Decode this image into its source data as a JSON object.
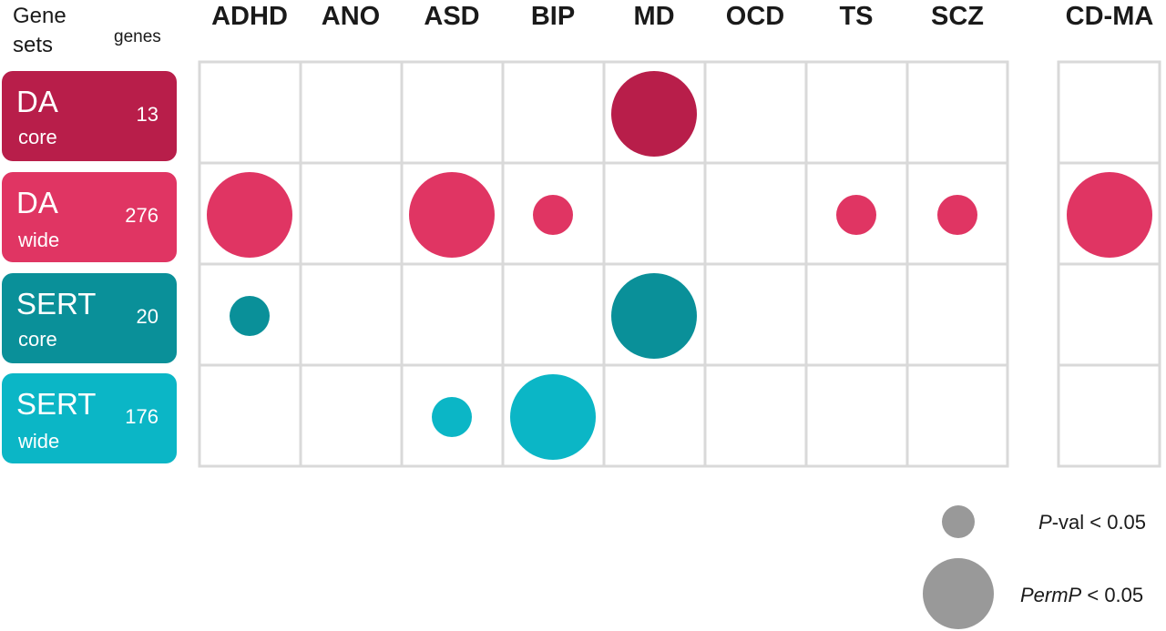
{
  "header": {
    "gene_sets_line1": "Gene",
    "gene_sets_line2": "sets",
    "genes": "genes"
  },
  "gene_sets": [
    {
      "name": "DA",
      "scope": "core",
      "count": "13",
      "color": "#b81e4a"
    },
    {
      "name": "DA",
      "scope": "wide",
      "count": "276",
      "color": "#e03563"
    },
    {
      "name": "SERT",
      "scope": "core",
      "count": "20",
      "color": "#0a9099"
    },
    {
      "name": "SERT",
      "scope": "wide",
      "count": "176",
      "color": "#0bb6c6"
    }
  ],
  "legend": {
    "small": {
      "italic": "P",
      "text": "-val < 0.05",
      "color": "#999999"
    },
    "large": {
      "italic": "PermP",
      "text": " < 0.05",
      "color": "#999999"
    }
  },
  "chart_data": {
    "type": "bubble-matrix",
    "columns": [
      "ADHD",
      "ANO",
      "ASD",
      "BIP",
      "MD",
      "OCD",
      "TS",
      "SCZ",
      "CD-MA"
    ],
    "rows": [
      "DA core",
      "DA wide",
      "SERT core",
      "SERT wide"
    ],
    "significance_levels": [
      "P-val < 0.05",
      "PermP < 0.05"
    ],
    "cells": [
      {
        "row": "DA core",
        "column": "MD",
        "level": "PermP < 0.05"
      },
      {
        "row": "DA wide",
        "column": "ADHD",
        "level": "PermP < 0.05"
      },
      {
        "row": "DA wide",
        "column": "ASD",
        "level": "PermP < 0.05"
      },
      {
        "row": "DA wide",
        "column": "BIP",
        "level": "P-val < 0.05"
      },
      {
        "row": "DA wide",
        "column": "TS",
        "level": "P-val < 0.05"
      },
      {
        "row": "DA wide",
        "column": "SCZ",
        "level": "P-val < 0.05"
      },
      {
        "row": "DA wide",
        "column": "CD-MA",
        "level": "PermP < 0.05"
      },
      {
        "row": "SERT core",
        "column": "ADHD",
        "level": "P-val < 0.05"
      },
      {
        "row": "SERT core",
        "column": "MD",
        "level": "PermP < 0.05"
      },
      {
        "row": "SERT wide",
        "column": "ASD",
        "level": "P-val < 0.05"
      },
      {
        "row": "SERT wide",
        "column": "BIP",
        "level": "PermP < 0.05"
      }
    ],
    "grid": true
  }
}
